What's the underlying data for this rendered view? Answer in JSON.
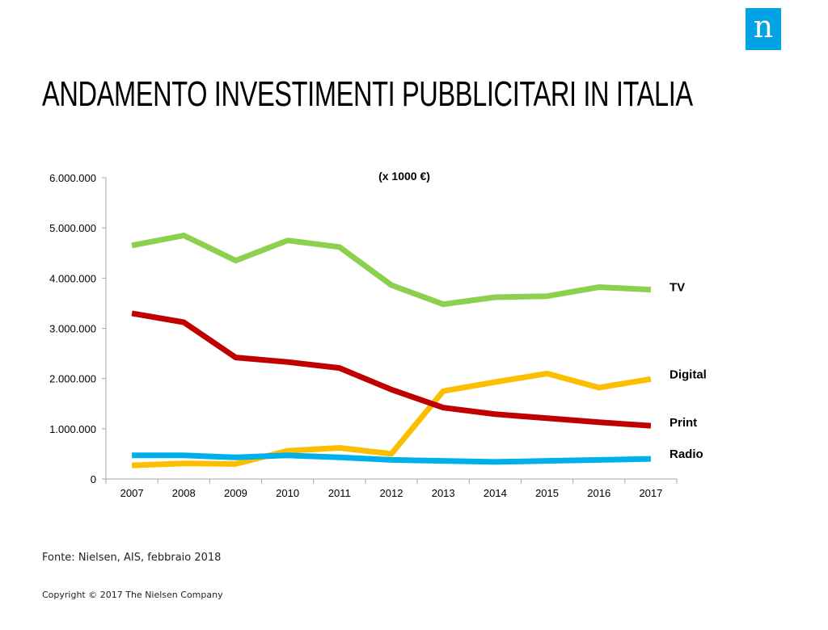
{
  "logo": {
    "letter": "n",
    "color": "#00a4e4"
  },
  "title": "ANDAMENTO INVESTIMENTI PUBBLICITARI IN ITALIA",
  "footer": {
    "source": "Fonte: Nielsen, AIS, febbraio 2018",
    "copyright": "Copyright © 2017 The Nielsen Company"
  },
  "chart_data": {
    "type": "line",
    "title": "(x 1000 €)",
    "xlabel": "",
    "ylabel": "",
    "ylim": [
      0,
      6000000
    ],
    "y_ticks": [
      0,
      1000000,
      2000000,
      3000000,
      4000000,
      5000000,
      6000000
    ],
    "y_tick_labels": [
      "0",
      "1.000.000",
      "2.000.000",
      "3.000.000",
      "4.000.000",
      "5.000.000",
      "6.000.000"
    ],
    "grid": false,
    "legend": "direct labels at right end of lines",
    "categories": [
      "2007",
      "2008",
      "2009",
      "2010",
      "2011",
      "2012",
      "2013",
      "2014",
      "2015",
      "2016",
      "2017"
    ],
    "series": [
      {
        "name": "TV",
        "color": "#8cd050",
        "values": [
          4650000,
          4850000,
          4350000,
          4750000,
          4620000,
          3860000,
          3480000,
          3620000,
          3640000,
          3820000,
          3770000
        ]
      },
      {
        "name": "Digital",
        "color": "#fbbf00",
        "values": [
          270000,
          310000,
          300000,
          560000,
          620000,
          500000,
          1750000,
          1930000,
          2100000,
          1820000,
          1990000
        ]
      },
      {
        "name": "Print",
        "color": "#c00000",
        "values": [
          3300000,
          3120000,
          2420000,
          2330000,
          2210000,
          1780000,
          1420000,
          1290000,
          1210000,
          1130000,
          1060000
        ]
      },
      {
        "name": "Radio",
        "color": "#00b0ea",
        "values": [
          470000,
          470000,
          430000,
          470000,
          430000,
          380000,
          360000,
          340000,
          360000,
          380000,
          400000
        ]
      }
    ]
  }
}
